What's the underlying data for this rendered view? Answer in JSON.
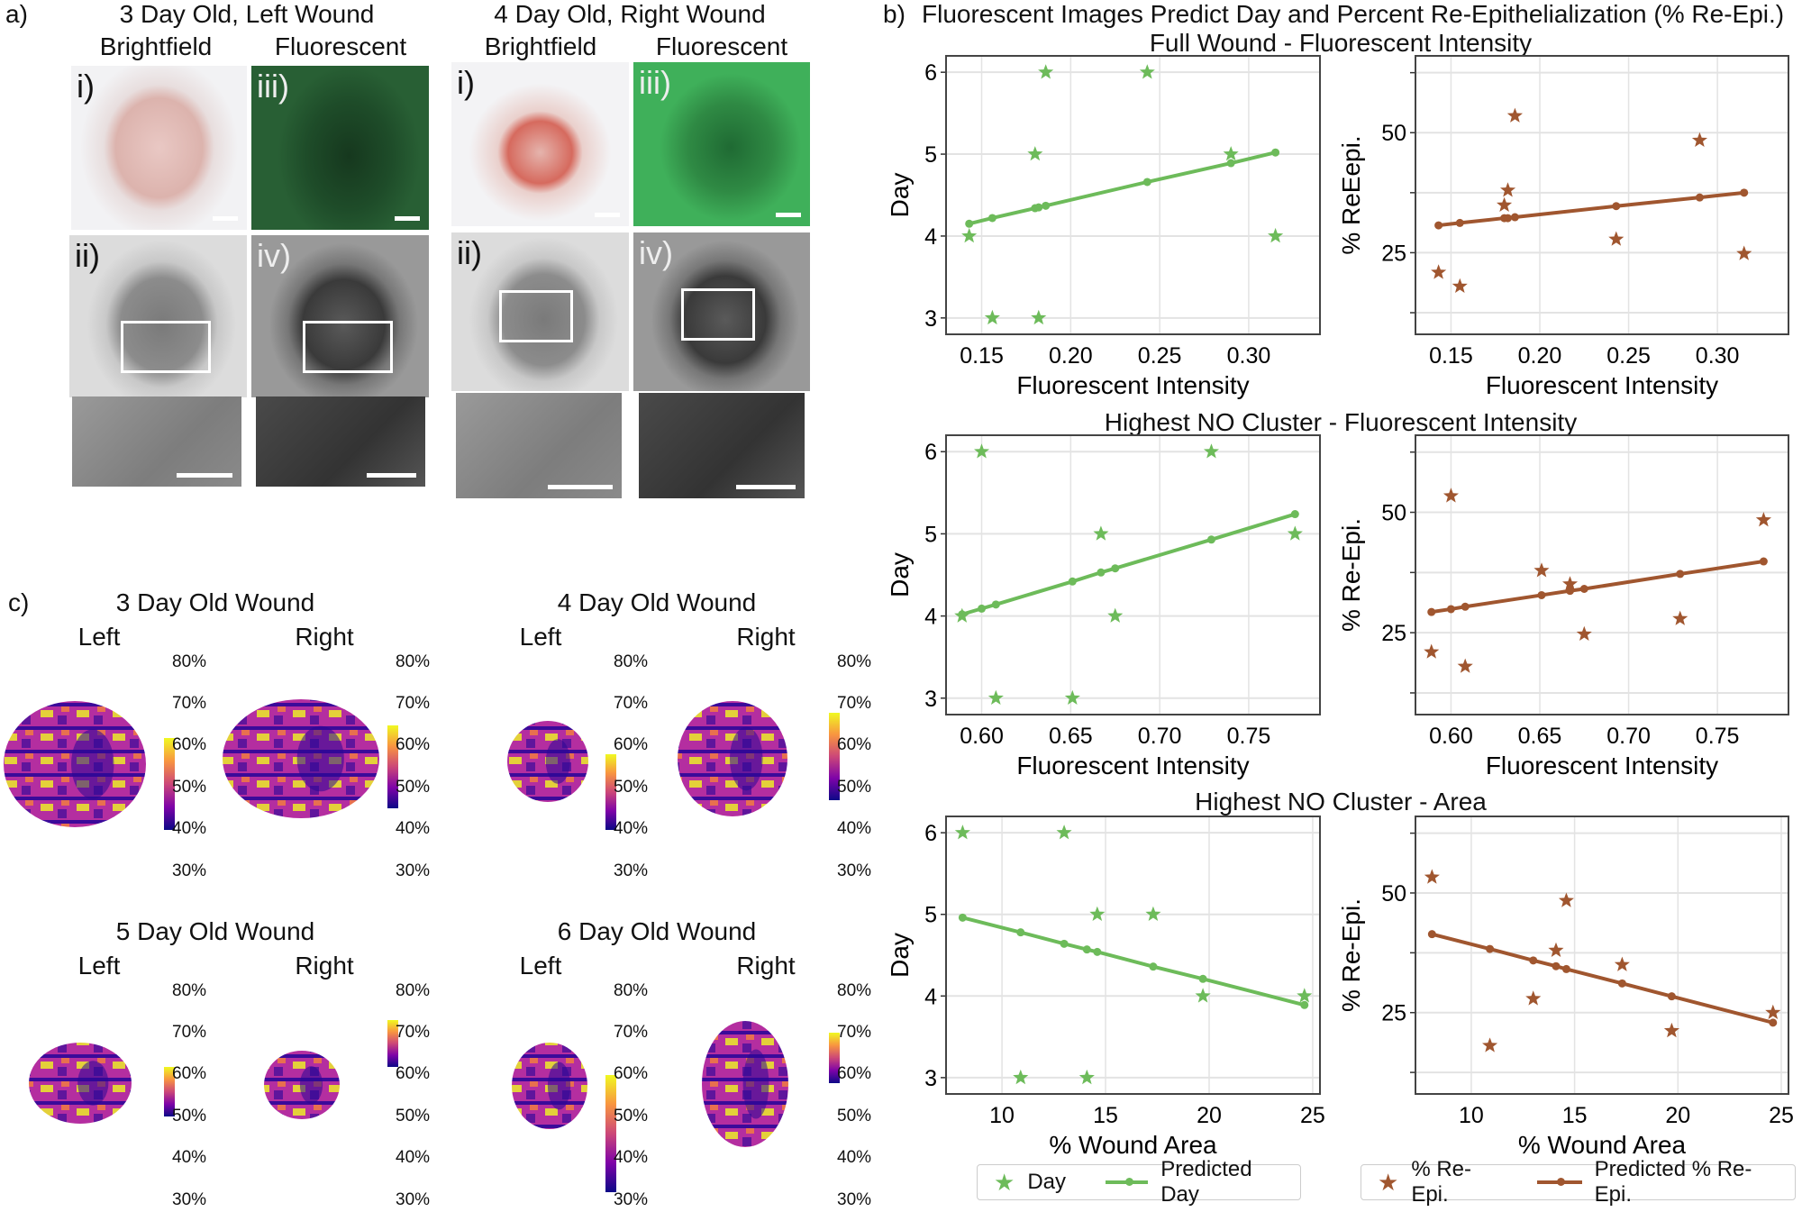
{
  "panel_a": {
    "label": "a)",
    "groups": [
      {
        "title": "3 Day Old, Left Wound",
        "col1": "Brightfield",
        "col2": "Fluorescent",
        "labels": [
          "i)",
          "ii)",
          "iii)",
          "iv)"
        ]
      },
      {
        "title": "4 Day Old, Right Wound",
        "col1": "Brightfield",
        "col2": "Fluorescent",
        "labels": [
          "i)",
          "ii)",
          "iii)",
          "iv)"
        ]
      }
    ]
  },
  "panel_b": {
    "label": "b)",
    "title": "Fluorescent Images Predict Day and Percent Re-Epithelialization (% Re-Epi.)",
    "rows": [
      "Full Wound - Fluorescent Intensity",
      "Highest NO Cluster - Fluorescent Intensity",
      "Highest NO Cluster - Area"
    ]
  },
  "panel_c": {
    "label": "c)",
    "wounds": [
      {
        "title": "3 Day Old Wound",
        "left": "Left",
        "right": "Right",
        "left_range": [
          40,
          62
        ],
        "right_range": [
          45,
          65
        ]
      },
      {
        "title": "4 Day Old Wound",
        "left": "Left",
        "right": "Right",
        "left_range": [
          40,
          58
        ],
        "right_range": [
          47,
          68
        ]
      },
      {
        "title": "5 Day Old Wound",
        "left": "Left",
        "right": "Right",
        "left_range": [
          50,
          62
        ],
        "right_range": [
          62,
          73
        ]
      },
      {
        "title": "6 Day Old Wound",
        "left": "Left",
        "right": "Right",
        "left_range": [
          32,
          60
        ],
        "right_range": [
          58,
          70
        ]
      }
    ],
    "ticks": [
      "80%",
      "70%",
      "60%",
      "50%",
      "40%",
      "30%"
    ],
    "colormap": [
      "#0d0887",
      "#7e03a8",
      "#cc4778",
      "#f89540",
      "#f0f921"
    ]
  },
  "legend": {
    "left": {
      "marker": "Day",
      "line": "Predicted Day"
    },
    "right": {
      "marker": "% Re-Epi.",
      "line": "Predicted % Re-Epi."
    }
  },
  "colors": {
    "day": "#6dbb5a",
    "reepi": "#a0562f",
    "grid": "#e3e3e3"
  },
  "chart_data": [
    {
      "type": "scatter",
      "row": "Full Wound - Fluorescent Intensity",
      "xlabel": "Fluorescent Intensity",
      "ylabel": "Day",
      "xlim": [
        0.13,
        0.34
      ],
      "ylim": [
        2.8,
        6.2
      ],
      "xticks": [
        "0.15",
        "0.20",
        "0.25",
        "0.30"
      ],
      "yticks": [
        3,
        4,
        5,
        6
      ],
      "ygrid": [
        3,
        4,
        5,
        6
      ],
      "grid": true,
      "series": [
        {
          "name": "Day",
          "marker": "star",
          "x": [
            0.143,
            0.156,
            0.18,
            0.182,
            0.186,
            0.243,
            0.29,
            0.315
          ],
          "y": [
            4,
            3,
            5,
            3,
            6,
            6,
            5,
            4
          ]
        },
        {
          "name": "Predicted Day",
          "marker": "line",
          "x": [
            0.143,
            0.156,
            0.18,
            0.182,
            0.186,
            0.243,
            0.29,
            0.315
          ],
          "y": [
            4.15,
            4.22,
            4.34,
            4.35,
            4.37,
            4.66,
            4.89,
            5.02
          ]
        }
      ]
    },
    {
      "type": "scatter",
      "row": "Full Wound - Fluorescent Intensity",
      "xlabel": "Fluorescent Intensity",
      "ylabel": "% ReEepi.",
      "xlim": [
        0.13,
        0.34
      ],
      "ylim": [
        8,
        66
      ],
      "xticks": [
        "0.15",
        "0.20",
        "0.25",
        "0.30"
      ],
      "yticks": [
        25,
        50
      ],
      "ygrid": [
        12.5,
        25,
        37.5,
        50,
        62.5
      ],
      "grid": true,
      "series": [
        {
          "name": "% Re-Epi.",
          "marker": "star",
          "x": [
            0.143,
            0.155,
            0.18,
            0.182,
            0.186,
            0.243,
            0.29,
            0.315
          ],
          "y": [
            20.9,
            18,
            34.9,
            38,
            53.5,
            27.8,
            48.4,
            24.8
          ]
        },
        {
          "name": "Predicted % Re-Epi.",
          "marker": "line",
          "x": [
            0.143,
            0.155,
            0.18,
            0.182,
            0.186,
            0.243,
            0.29,
            0.315
          ],
          "y": [
            30.7,
            31.2,
            32.2,
            32.2,
            32.4,
            34.7,
            36.5,
            37.5
          ]
        }
      ]
    },
    {
      "type": "scatter",
      "row": "Highest NO Cluster - Fluorescent Intensity",
      "xlabel": "Fluorescent Intensity",
      "ylabel": "Day",
      "xlim": [
        0.58,
        0.79
      ],
      "ylim": [
        2.8,
        6.2
      ],
      "xticks": [
        "0.60",
        "0.65",
        "0.70",
        "0.75"
      ],
      "yticks": [
        3,
        4,
        5,
        6
      ],
      "ygrid": [
        3,
        4,
        5,
        6
      ],
      "grid": true,
      "series": [
        {
          "name": "Day",
          "marker": "star",
          "x": [
            0.589,
            0.6,
            0.608,
            0.651,
            0.667,
            0.675,
            0.729,
            0.776
          ],
          "y": [
            4,
            6,
            3,
            3,
            5,
            4,
            6,
            5
          ]
        },
        {
          "name": "Predicted Day",
          "marker": "line",
          "x": [
            0.589,
            0.6,
            0.608,
            0.651,
            0.667,
            0.675,
            0.729,
            0.776
          ],
          "y": [
            4.02,
            4.09,
            4.14,
            4.42,
            4.53,
            4.58,
            4.93,
            5.24
          ]
        }
      ]
    },
    {
      "type": "scatter",
      "row": "Highest NO Cluster - Fluorescent Intensity",
      "xlabel": "Fluorescent Intensity",
      "ylabel": "% Re-Epi.",
      "xlim": [
        0.58,
        0.79
      ],
      "ylim": [
        8,
        66
      ],
      "xticks": [
        "0.60",
        "0.65",
        "0.70",
        "0.75"
      ],
      "yticks": [
        25,
        50
      ],
      "ygrid": [
        12.5,
        25,
        37.5,
        50,
        62.5
      ],
      "grid": true,
      "series": [
        {
          "name": "% Re-Epi.",
          "marker": "star",
          "x": [
            0.589,
            0.6,
            0.608,
            0.651,
            0.667,
            0.675,
            0.729,
            0.776
          ],
          "y": [
            21,
            53.4,
            18,
            37.9,
            35.1,
            24.7,
            27.9,
            48.4
          ]
        },
        {
          "name": "Predicted % Re-Epi.",
          "marker": "line",
          "x": [
            0.589,
            0.6,
            0.608,
            0.651,
            0.667,
            0.675,
            0.729,
            0.776
          ],
          "y": [
            29.3,
            29.9,
            30.4,
            32.8,
            33.7,
            34.1,
            37.2,
            39.8
          ]
        }
      ]
    },
    {
      "type": "scatter",
      "row": "Highest NO Cluster - Area",
      "xlabel": "% Wound Area",
      "ylabel": "Day",
      "xlim": [
        7.3,
        25.35
      ],
      "ylim": [
        2.8,
        6.2
      ],
      "xticks": [
        "10",
        "15",
        "20",
        "25"
      ],
      "yticks": [
        3,
        4,
        5,
        6
      ],
      "ygrid": [
        3,
        4,
        5,
        6
      ],
      "grid": true,
      "series": [
        {
          "name": "Day",
          "marker": "star",
          "x": [
            8.1,
            13,
            10.9,
            14.1,
            14.6,
            17.3,
            19.7,
            24.6
          ],
          "y": [
            6,
            6,
            3,
            3,
            5,
            5,
            4,
            4
          ]
        },
        {
          "name": "Predicted Day",
          "marker": "line",
          "x": [
            8.1,
            10.9,
            13,
            14.1,
            14.6,
            17.3,
            19.7,
            24.6
          ],
          "y": [
            4.96,
            4.78,
            4.64,
            4.57,
            4.54,
            4.36,
            4.21,
            3.89
          ]
        }
      ]
    },
    {
      "type": "scatter",
      "row": "Highest NO Cluster - Area",
      "xlabel": "% Wound Area",
      "ylabel": "% Re-Epi.",
      "xlim": [
        7.3,
        25.35
      ],
      "ylim": [
        8,
        66
      ],
      "xticks": [
        "10",
        "15",
        "20",
        "25"
      ],
      "yticks": [
        25,
        50
      ],
      "ygrid": [
        12.5,
        25,
        37.5,
        50,
        62.5
      ],
      "grid": true,
      "series": [
        {
          "name": "% Re-Epi.",
          "marker": "star",
          "x": [
            8.1,
            14.6,
            14.1,
            17.3,
            13,
            24.6,
            19.7,
            10.9
          ],
          "y": [
            53.3,
            48.4,
            38,
            35,
            27.9,
            25,
            21.2,
            18.1
          ]
        },
        {
          "name": "Predicted % Re-Epi.",
          "marker": "line",
          "x": [
            8.1,
            10.9,
            13,
            14.1,
            14.6,
            17.3,
            19.7,
            24.6
          ],
          "y": [
            41.4,
            38.3,
            35.9,
            34.7,
            34.1,
            31.1,
            28.4,
            22.9
          ]
        }
      ]
    }
  ]
}
